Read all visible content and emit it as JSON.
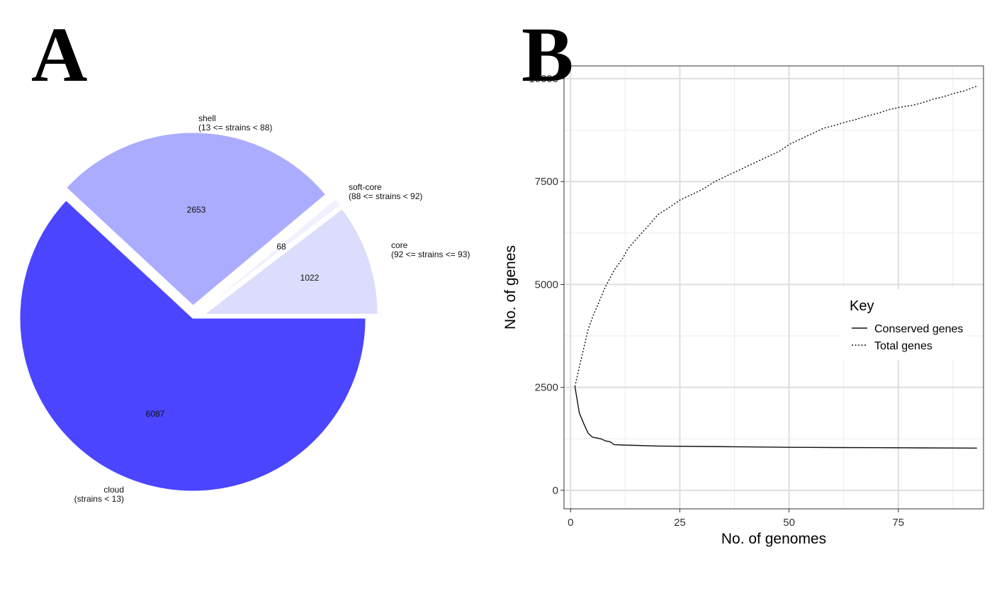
{
  "panels": {
    "a": "A",
    "b": "B"
  },
  "chart_data": [
    {
      "type": "pie",
      "slices": [
        {
          "name": "core",
          "range": "(92 <= strains <= 93)",
          "value": 1022,
          "color": "#dcdcfc",
          "exploded": true
        },
        {
          "name": "soft-core",
          "range": "(88 <= strains < 92)",
          "value": 68,
          "color": "#f0f0fe",
          "exploded": true
        },
        {
          "name": "shell",
          "range": "(13 <= strains < 88)",
          "value": 2653,
          "color": "#acacff",
          "exploded": true
        },
        {
          "name": "cloud",
          "range": "(strains < 13)",
          "value": 6087,
          "color": "#4b45ff",
          "exploded": false
        }
      ]
    },
    {
      "type": "line",
      "xlabel": "No. of genomes",
      "ylabel": "No. of genes",
      "xlim": [
        -1.5,
        94.5
      ],
      "ylim": [
        -450,
        10310
      ],
      "xticks": [
        0,
        25,
        50,
        75
      ],
      "yticks": [
        0,
        2500,
        5000,
        7500,
        10000
      ],
      "tick_labels_y": [
        "0",
        "2500",
        "5000",
        "7500",
        "10000"
      ],
      "grid": true,
      "legend": {
        "title": "Key",
        "position": "right"
      },
      "series": [
        {
          "name": "Conserved genes",
          "style": "solid",
          "x": [
            1,
            2,
            3,
            4,
            5,
            6,
            7,
            8,
            9,
            10,
            12,
            15,
            20,
            30,
            40,
            50,
            60,
            70,
            80,
            93
          ],
          "y": [
            2520,
            1880,
            1620,
            1390,
            1290,
            1270,
            1250,
            1200,
            1180,
            1110,
            1100,
            1090,
            1075,
            1065,
            1055,
            1045,
            1040,
            1035,
            1030,
            1025
          ]
        },
        {
          "name": "Total genes",
          "style": "dotted",
          "x": [
            1,
            2,
            3,
            4,
            5,
            6,
            7,
            8,
            9,
            10,
            11,
            12,
            13,
            15,
            18,
            20,
            23,
            25,
            28,
            30,
            33,
            35,
            38,
            40,
            43,
            45,
            48,
            50,
            53,
            55,
            58,
            60,
            63,
            65,
            68,
            70,
            73,
            75,
            78,
            80,
            83,
            85,
            88,
            90,
            93
          ],
          "y": [
            2520,
            3000,
            3450,
            3900,
            4200,
            4450,
            4700,
            4950,
            5150,
            5350,
            5500,
            5650,
            5850,
            6100,
            6450,
            6700,
            6900,
            7050,
            7200,
            7300,
            7500,
            7600,
            7750,
            7850,
            8000,
            8100,
            8250,
            8400,
            8550,
            8650,
            8800,
            8850,
            8950,
            9000,
            9100,
            9150,
            9250,
            9300,
            9350,
            9400,
            9500,
            9550,
            9650,
            9700,
            9820
          ]
        }
      ]
    }
  ]
}
